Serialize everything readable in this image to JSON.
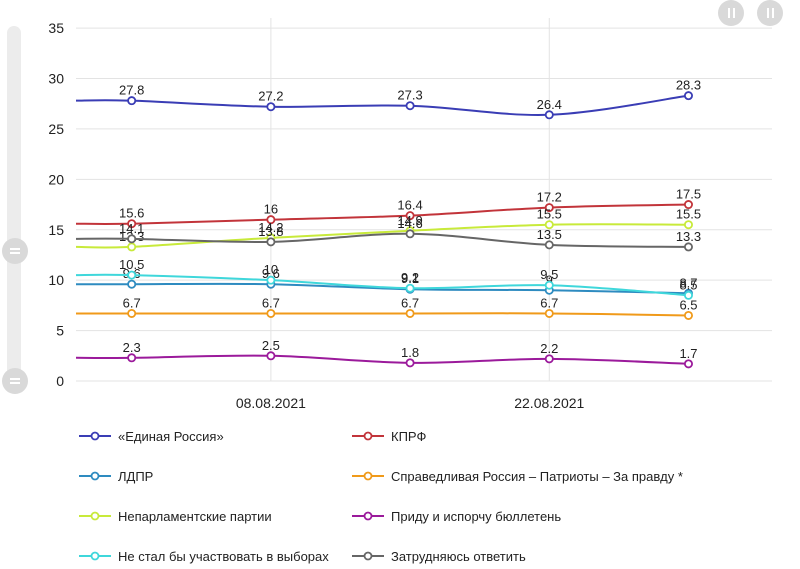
{
  "chart_data": {
    "type": "line",
    "x": [
      1,
      2,
      3,
      4,
      5
    ],
    "xticks": [
      {
        "at": 2,
        "label": "08.08.2021"
      },
      {
        "at": 4,
        "label": "22.08.2021"
      }
    ],
    "ylim": [
      0,
      36
    ],
    "yticks": [
      0,
      5,
      10,
      15,
      20,
      25,
      30,
      35
    ],
    "grid": true,
    "legend_position": "bottom",
    "series": [
      {
        "name": "«Единая Россия»",
        "color": "#3a3db5",
        "values": [
          27.8,
          27.2,
          27.3,
          26.4,
          28.3
        ],
        "labels": [
          "27.8",
          "27.2",
          "27.3",
          "26.4",
          "28.3"
        ]
      },
      {
        "name": "КПРФ",
        "color": "#c2343a",
        "values": [
          15.6,
          16,
          16.4,
          17.2,
          17.5
        ],
        "labels": [
          "15.6",
          "16",
          "16.4",
          "17.2",
          "17.5"
        ]
      },
      {
        "name": "ЛДПР",
        "color": "#2e8bc0",
        "values": [
          9.6,
          9.6,
          9.1,
          9.0,
          8.7
        ],
        "labels": [
          "9.6",
          "9.6",
          "9.1",
          "9",
          "8.7"
        ]
      },
      {
        "name": "Справедливая Россия – Патриоты – За правду *",
        "color": "#f09a1a",
        "values": [
          6.7,
          6.7,
          6.7,
          6.7,
          6.5
        ],
        "labels": [
          "6.7",
          "6.7",
          "6.7",
          "6.7",
          "6.5"
        ]
      },
      {
        "name": "Непарламентские партии",
        "color": "#c8ea3a",
        "values": [
          13.3,
          14.2,
          14.9,
          15.5,
          15.5
        ],
        "labels": [
          "13.3",
          "14.2",
          "14.9",
          "15.5",
          "15.5"
        ]
      },
      {
        "name": "Приду и испорчу бюллетень",
        "color": "#9b1a9b",
        "values": [
          2.3,
          2.5,
          1.8,
          2.2,
          1.7
        ],
        "labels": [
          "2.3",
          "2.5",
          "1.8",
          "2.2",
          "1.7"
        ]
      },
      {
        "name": "Не стал бы участвовать в выборах",
        "color": "#3fd7db",
        "values": [
          10.5,
          10,
          9.2,
          9.5,
          8.5
        ],
        "labels": [
          "10.5",
          "10",
          "9.2",
          "9.5",
          "8.5"
        ]
      },
      {
        "name": "Затрудняюсь ответить",
        "color": "#666666",
        "values": [
          14.1,
          13.8,
          14.6,
          13.5,
          13.3
        ],
        "labels": [
          "14.1",
          "13.8",
          "14.6",
          "13.5",
          "13.3"
        ]
      }
    ]
  }
}
